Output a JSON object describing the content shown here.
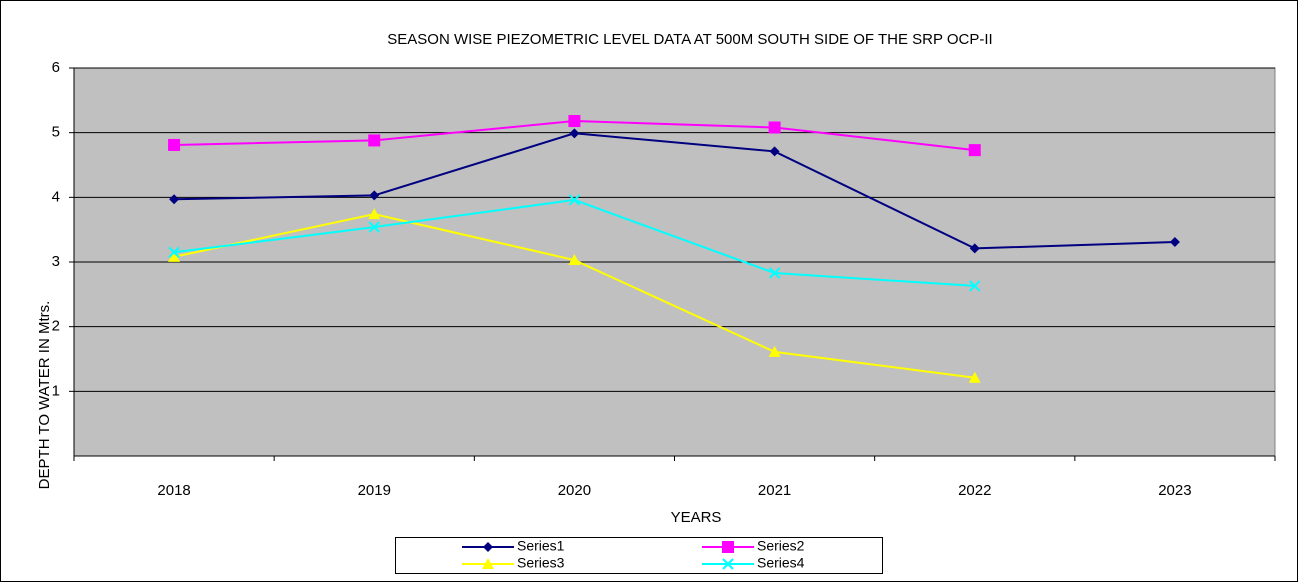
{
  "chart_data": {
    "type": "line",
    "title": "SEASON WISE PIEZOMETRIC LEVEL DATA AT 500M SOUTH SIDE OF THE SRP OCP-II",
    "x_label": "YEARS",
    "y_label": "DEPTH TO WATER IN Mtrs.",
    "categories": [
      "2018",
      "2019",
      "2020",
      "2021",
      "2022",
      "2023"
    ],
    "series": [
      {
        "name": "Series1",
        "color": "#000080",
        "marker": "diamond",
        "values": [
          3.97,
          4.03,
          4.99,
          4.71,
          3.21,
          3.31
        ]
      },
      {
        "name": "Series2",
        "color": "#ff00ff",
        "marker": "square",
        "values": [
          4.81,
          4.88,
          5.18,
          5.08,
          4.73,
          null
        ]
      },
      {
        "name": "Series3",
        "color": "#ffff00",
        "marker": "triangle",
        "values": [
          3.08,
          3.74,
          3.03,
          1.61,
          1.21,
          null
        ]
      },
      {
        "name": "Series4",
        "color": "#00ffff",
        "marker": "x",
        "values": [
          3.15,
          3.54,
          3.96,
          2.83,
          2.63,
          null
        ]
      }
    ],
    "ylim": [
      0,
      6
    ],
    "yticks": [
      1,
      2,
      3,
      4,
      5,
      6
    ],
    "grid": true,
    "legend": "bottom"
  }
}
